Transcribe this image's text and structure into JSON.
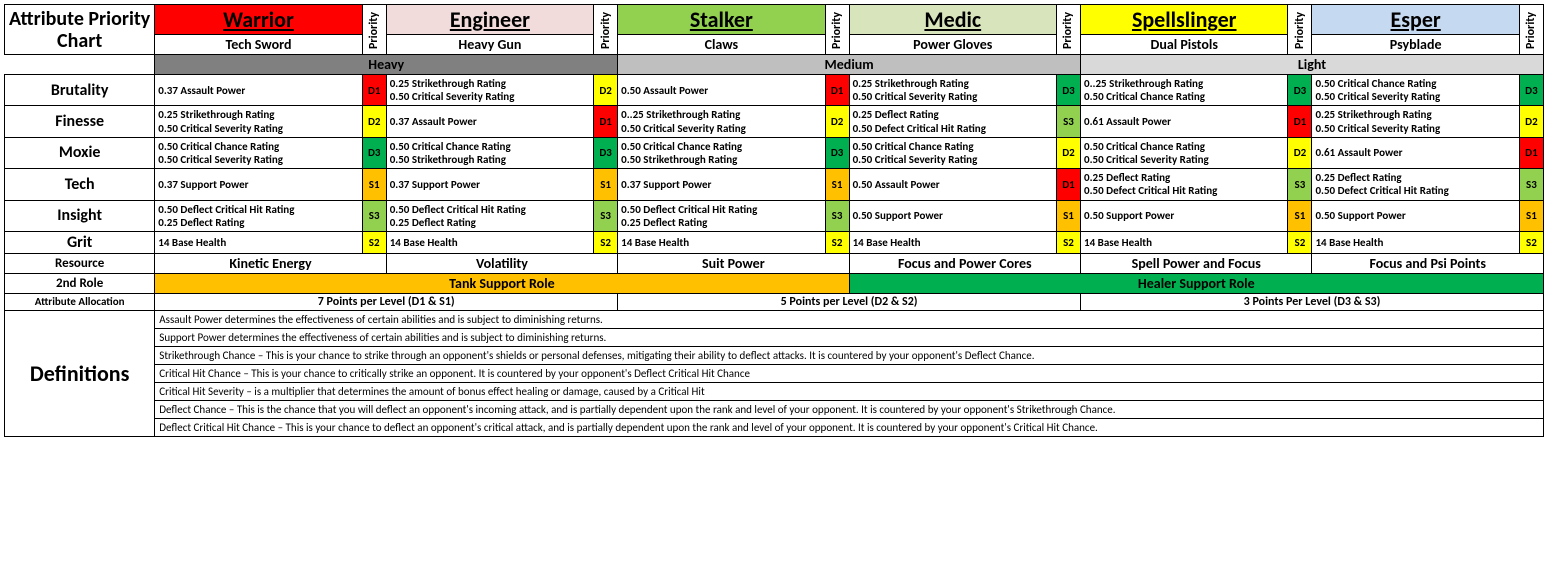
{
  "title": "Attribute Priority Chart",
  "priority_label": "Priority",
  "classes": [
    {
      "name": "Warrior",
      "weapon": "Tech Sword",
      "bg": "#ff0000",
      "fg": "#000000"
    },
    {
      "name": "Engineer",
      "weapon": "Heavy Gun",
      "bg": "#f2dcdb",
      "fg": "#000000"
    },
    {
      "name": "Stalker",
      "weapon": "Claws",
      "bg": "#92d050",
      "fg": "#000000"
    },
    {
      "name": "Medic",
      "weapon": "Power Gloves",
      "bg": "#d8e4bc",
      "fg": "#000000"
    },
    {
      "name": "Spellslinger",
      "weapon": "Dual Pistols",
      "bg": "#ffff00",
      "fg": "#000000"
    },
    {
      "name": "Esper",
      "weapon": "Psyblade",
      "bg": "#c5d9f1",
      "fg": "#000000"
    }
  ],
  "armor": [
    {
      "label": "Heavy",
      "bg": "#808080"
    },
    {
      "label": "Medium",
      "bg": "#bfbfbf"
    },
    {
      "label": "Light",
      "bg": "#d9d9d9"
    }
  ],
  "priority_colors": {
    "D1": "#ff0000",
    "D2": "#ffff00",
    "D3": "#00b050",
    "S1": "#ffc000",
    "S2": "#ffff00",
    "S3": "#92d050"
  },
  "attrs": [
    {
      "name": "Brutality",
      "cells": [
        {
          "text": "0.37 Assault Power",
          "pri": "D1"
        },
        {
          "text": "0.25 Strikethrough Rating\n0.50 Critical Severity Rating",
          "pri": "D2"
        },
        {
          "text": "0.50 Assault Power",
          "pri": "D1"
        },
        {
          "text": "0.25 Strikethrough Rating\n0.50 Critical Severity Rating",
          "pri": "D3"
        },
        {
          "text": "0..25 Strikethrough Rating\n0.50 Critical Chance Rating",
          "pri": "D3"
        },
        {
          "text": "0.50 Critical Chance Rating\n0.50 Critical Severity Rating",
          "pri": "D3"
        }
      ]
    },
    {
      "name": "Finesse",
      "cells": [
        {
          "text": "0.25 Strikethrough Rating\n0.50 Critical Severity Rating",
          "pri": "D2"
        },
        {
          "text": "0.37 Assault Power",
          "pri": "D1"
        },
        {
          "text": "0..25 Strikethrough Rating\n0.50 Critical Severity Rating",
          "pri": "D2"
        },
        {
          "text": "0.25 Deflect Rating\n0.50 Defect Critical Hit Rating",
          "pri": "S3"
        },
        {
          "text": "0.61 Assault Power",
          "pri": "D1"
        },
        {
          "text": "0.25 Strikethrough Rating\n0.50 Critical Severity Rating",
          "pri": "D2"
        }
      ]
    },
    {
      "name": "Moxie",
      "cells": [
        {
          "text": "0.50 Critical Chance Rating\n0.50 Critical Severity Rating",
          "pri": "D3"
        },
        {
          "text": "0.50 Critical Chance Rating\n0.50 Strikethrough Rating",
          "pri": "D3"
        },
        {
          "text": "0.50 Critical Chance Rating\n0.50 Strikethrough Rating",
          "pri": "D3"
        },
        {
          "text": "0.50 Critical Chance Rating\n0.50 Critical Severity Rating",
          "pri": "D2"
        },
        {
          "text": "0.50 Critical Chance Rating\n0.50 Critical Severity Rating",
          "pri": "D2"
        },
        {
          "text": "0.61 Assault Power",
          "pri": "D1"
        }
      ]
    },
    {
      "name": "Tech",
      "cells": [
        {
          "text": "0.37 Support Power",
          "pri": "S1"
        },
        {
          "text": "0.37 Support Power",
          "pri": "S1"
        },
        {
          "text": "0.37 Support Power",
          "pri": "S1"
        },
        {
          "text": "0.50 Assault Power",
          "pri": "D1"
        },
        {
          "text": "0.25 Deflect Rating\n0.50 Defect Critical Hit Rating",
          "pri": "S3"
        },
        {
          "text": "0.25 Deflect Rating\n0.50 Defect Critical Hit Rating",
          "pri": "S3"
        }
      ]
    },
    {
      "name": "Insight",
      "cells": [
        {
          "text": "0.50 Deflect Critical Hit Rating\n0.25 Deflect Rating",
          "pri": "S3"
        },
        {
          "text": "0.50 Deflect Critical Hit Rating\n0.25 Deflect Rating",
          "pri": "S3"
        },
        {
          "text": "0.50 Deflect Critical Hit Rating\n0.25 Deflect Rating",
          "pri": "S3"
        },
        {
          "text": "0.50 Support Power",
          "pri": "S1"
        },
        {
          "text": "0.50 Support Power",
          "pri": "S1"
        },
        {
          "text": "0.50 Support Power",
          "pri": "S1"
        }
      ]
    },
    {
      "name": "Grit",
      "cells": [
        {
          "text": "14 Base Health",
          "pri": "S2"
        },
        {
          "text": "14 Base Health",
          "pri": "S2"
        },
        {
          "text": "14 Base Health",
          "pri": "S2"
        },
        {
          "text": "14 Base Health",
          "pri": "S2"
        },
        {
          "text": "14 Base Health",
          "pri": "S2"
        },
        {
          "text": "14 Base Health",
          "pri": "S2"
        }
      ]
    }
  ],
  "resource_label": "Resource",
  "resources": [
    "Kinetic Energy",
    "Volatility",
    "Suit Power",
    "Focus and Power Cores",
    "Spell Power and Focus",
    "Focus and Psi Points"
  ],
  "role_label": "2nd Role",
  "roles": [
    {
      "label": "Tank Support Role",
      "bg": "#ffc000",
      "span": 3
    },
    {
      "label": "Healer Support Role",
      "bg": "#00b050",
      "span": 3
    }
  ],
  "alloc_label": "Attribute Allocation",
  "allocs": [
    "7 Points per Level (D1 & S1)",
    "5 Points per Level (D2 & S2)",
    "3 Points Per Level (D3 & S3)"
  ],
  "definitions_label": "Definitions",
  "definitions": [
    "Assault Power determines the effectiveness of certain abilities and is subject to diminishing returns.",
    "Support Power determines the effectiveness of certain abilities and is subject to diminishing returns.",
    "Strikethrough Chance – This is your chance to strike through an opponent's shields or personal defenses, mitigating their ability to deflect attacks. It is countered by your opponent's Deflect Chance.",
    "Critical Hit Chance – This is your chance to critically strike an opponent. It is countered by your opponent's Deflect Critical Hit Chance",
    "Critical Hit Severity – is a multiplier that determines the amount of bonus effect healing or damage, caused by a Critical Hit",
    "Deflect Chance – This is the chance that you will deflect an opponent's incoming attack, and is partially dependent upon the rank and level of your opponent. It is countered by your opponent's Strikethrough Chance.",
    "Deflect Critical Hit Chance – This is your chance to deflect an opponent's critical attack, and is partially dependent upon the rank and level of your opponent. It is countered by your opponent's Critical Hit Chance."
  ]
}
